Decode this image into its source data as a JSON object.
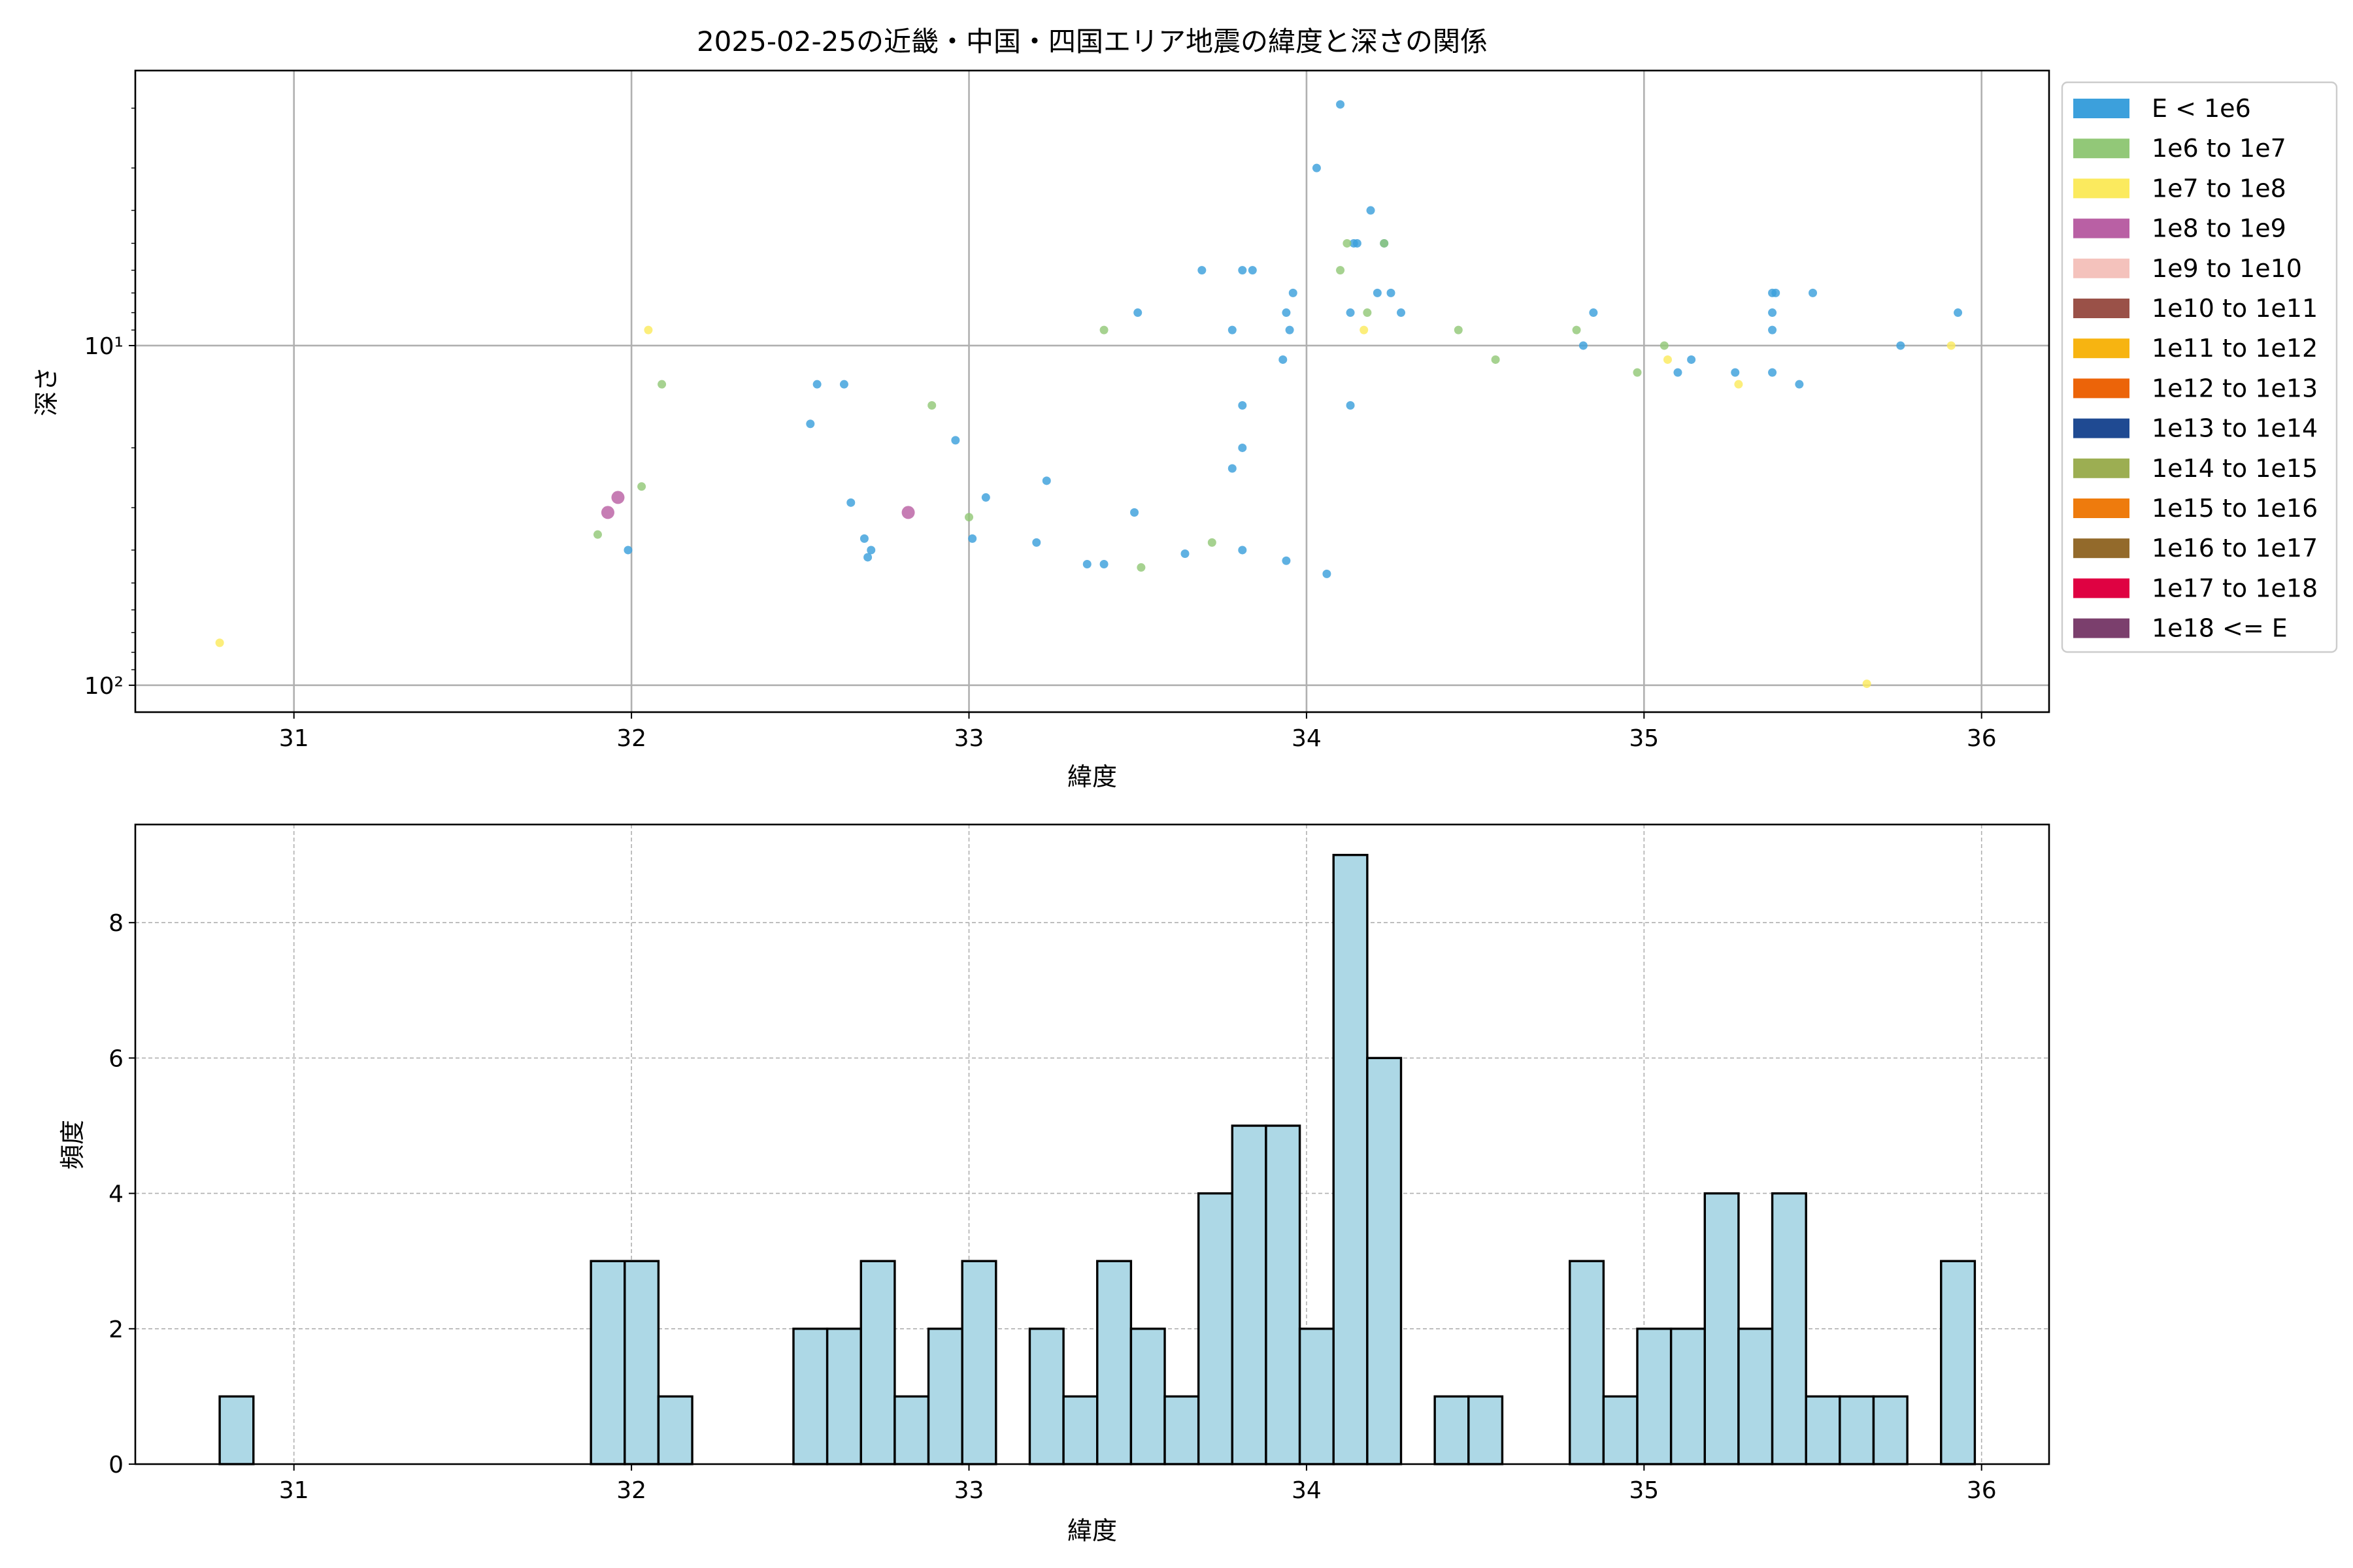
{
  "chart_data": [
    {
      "type": "scatter",
      "title": "2025-02-25の近畿・中国・四国エリア地震の緯度と深さの関係",
      "xlabel": "緯度",
      "ylabel": "深さ",
      "xlim": [
        30.53,
        36.2
      ],
      "ylim": [
        120,
        1.55
      ],
      "yscale": "log",
      "yinverted": true,
      "xticks": [
        "31",
        "32",
        "33",
        "34",
        "35",
        "36"
      ],
      "yticks": [
        {
          "value": 10,
          "label": "10¹"
        },
        {
          "value": 100,
          "label": "10²"
        }
      ],
      "grid": true,
      "legend_position": "outside-right",
      "legend": [
        {
          "label": "E < 1e6",
          "color": "#3ca0dc"
        },
        {
          "label": "1e6 to 1e7",
          "color": "#92c878"
        },
        {
          "label": "1e7 to 1e8",
          "color": "#fbea5e"
        },
        {
          "label": "1e8 to 1e9",
          "color": "#b960a4"
        },
        {
          "label": "1e9 to 1e10",
          "color": "#f4c2bc"
        },
        {
          "label": "1e10 to 1e11",
          "color": "#9a5148"
        },
        {
          "label": "1e11 to 1e12",
          "color": "#f7b411"
        },
        {
          "label": "1e12 to 1e13",
          "color": "#ec6409"
        },
        {
          "label": "1e13 to 1e14",
          "color": "#1f4a92"
        },
        {
          "label": "1e14 to 1e15",
          "color": "#9cae52"
        },
        {
          "label": "1e15 to 1e16",
          "color": "#ee7b0d"
        },
        {
          "label": "1e16 to 1e17",
          "color": "#936a2b"
        },
        {
          "label": "1e17 to 1e18",
          "color": "#df0242"
        },
        {
          "label": "1e18 <= E",
          "color": "#7b3f6d"
        }
      ],
      "series": [
        {
          "name": "E < 1e6",
          "color": "#3ca0dc",
          "points": [
            [
              31.99,
              40
            ],
            [
              32.53,
              17
            ],
            [
              32.55,
              13
            ],
            [
              32.63,
              13
            ],
            [
              32.65,
              29
            ],
            [
              32.69,
              37
            ],
            [
              32.7,
              42
            ],
            [
              32.71,
              40
            ],
            [
              32.96,
              19
            ],
            [
              33.01,
              37
            ],
            [
              33.05,
              28
            ],
            [
              33.2,
              38
            ],
            [
              33.23,
              25
            ],
            [
              33.35,
              44
            ],
            [
              33.4,
              44
            ],
            [
              33.5,
              8
            ],
            [
              33.49,
              31
            ],
            [
              33.64,
              41
            ],
            [
              33.69,
              6
            ],
            [
              33.78,
              9
            ],
            [
              33.78,
              23
            ],
            [
              33.81,
              6
            ],
            [
              33.81,
              20
            ],
            [
              33.81,
              15
            ],
            [
              33.81,
              40
            ],
            [
              33.84,
              6
            ],
            [
              33.93,
              11
            ],
            [
              33.94,
              8
            ],
            [
              33.95,
              9
            ],
            [
              33.96,
              7
            ],
            [
              33.94,
              43
            ],
            [
              34.03,
              3
            ],
            [
              34.06,
              47
            ],
            [
              34.1,
              1.95
            ],
            [
              34.13,
              15
            ],
            [
              34.14,
              5
            ],
            [
              34.13,
              8
            ],
            [
              34.15,
              5
            ],
            [
              34.19,
              4
            ],
            [
              34.21,
              7
            ],
            [
              34.23,
              5
            ],
            [
              34.25,
              7
            ],
            [
              34.28,
              8
            ],
            [
              34.82,
              10
            ],
            [
              34.85,
              8
            ],
            [
              35.1,
              12
            ],
            [
              35.14,
              11
            ],
            [
              35.27,
              12
            ],
            [
              35.38,
              12
            ],
            [
              35.38,
              9
            ],
            [
              35.38,
              8
            ],
            [
              35.38,
              7
            ],
            [
              35.39,
              7
            ],
            [
              35.46,
              13
            ],
            [
              35.5,
              7
            ],
            [
              35.76,
              10
            ],
            [
              35.93,
              8
            ]
          ]
        },
        {
          "name": "1e6 to 1e7",
          "color": "#92c878",
          "points": [
            [
              31.9,
              36
            ],
            [
              32.03,
              26
            ],
            [
              32.09,
              13
            ],
            [
              32.89,
              15
            ],
            [
              33.0,
              32
            ],
            [
              33.4,
              9
            ],
            [
              33.51,
              45
            ],
            [
              33.72,
              38
            ],
            [
              34.1,
              6
            ],
            [
              34.12,
              5
            ],
            [
              34.18,
              8
            ],
            [
              34.23,
              5
            ],
            [
              34.45,
              9
            ],
            [
              34.56,
              11
            ],
            [
              34.8,
              9
            ],
            [
              34.98,
              12
            ],
            [
              35.06,
              10
            ]
          ]
        },
        {
          "name": "1e7 to 1e8",
          "color": "#fbea5e",
          "points": [
            [
              30.78,
              75
            ],
            [
              32.05,
              9
            ],
            [
              34.17,
              9
            ],
            [
              35.07,
              11
            ],
            [
              35.28,
              13
            ],
            [
              35.66,
              99
            ],
            [
              35.91,
              10
            ]
          ]
        },
        {
          "name": "1e8 to 1e9",
          "color": "#b960a4",
          "points": [
            [
              31.93,
              31
            ],
            [
              31.96,
              28
            ],
            [
              32.82,
              31
            ]
          ]
        }
      ]
    },
    {
      "type": "bar",
      "subtype": "histogram",
      "xlabel": "緯度",
      "ylabel": "頻度",
      "xlim": [
        30.53,
        36.2
      ],
      "ylim": [
        0,
        9.45
      ],
      "xticks": [
        "31",
        "32",
        "33",
        "34",
        "35",
        "36"
      ],
      "yticks": [
        "0",
        "2",
        "4",
        "6",
        "8"
      ],
      "grid": true,
      "bar_color": "#add8e6",
      "bin_width": 0.1,
      "bin_start": 30.78,
      "values": [
        1,
        0,
        0,
        0,
        0,
        0,
        0,
        0,
        0,
        0,
        0,
        3,
        3,
        1,
        0,
        0,
        0,
        2,
        2,
        3,
        1,
        2,
        3,
        0,
        2,
        1,
        3,
        2,
        1,
        4,
        5,
        5,
        2,
        9,
        6,
        0,
        1,
        1,
        0,
        0,
        3,
        1,
        2,
        2,
        4,
        2,
        4,
        1,
        1,
        1,
        0,
        3
      ]
    }
  ]
}
